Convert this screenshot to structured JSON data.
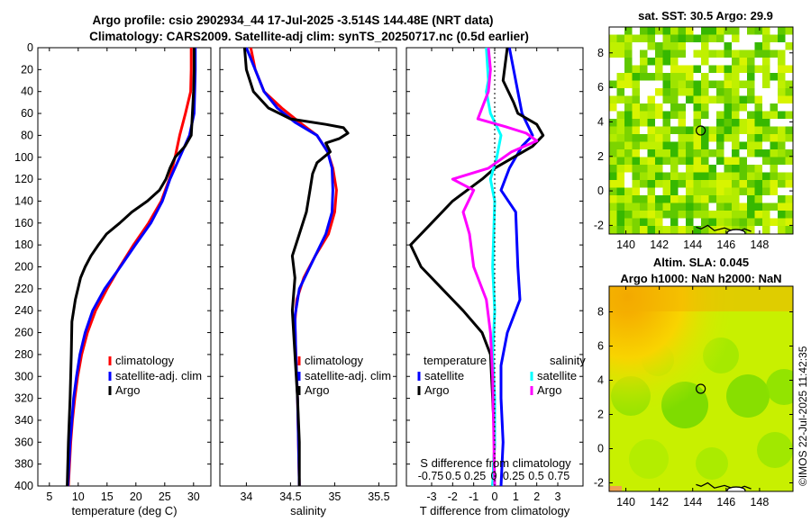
{
  "title": {
    "line1": "Argo profile: csio 2902934_44 17-Jul-2025 -3.514S 144.48E (NRT data)",
    "line2": "Climatology: CARS2009. Satellite-adj clim: synTS_20250717.nc (0.5d earlier)"
  },
  "watermark": "©IMOS 22-Jul-2025 11:42:35",
  "colors": {
    "climatology": "#ff0000",
    "satellite": "#0000ff",
    "argo": "#000000",
    "sat_diff_salinity": "#00ffff",
    "argo_diff_salinity": "#ff00ff",
    "sst_missing": "#ffffff"
  },
  "chart_data": [
    {
      "id": "temperature",
      "type": "line",
      "xlabel": "temperature (deg C)",
      "ylim": [
        0,
        400
      ],
      "yreversed": true,
      "xlim": [
        3,
        33
      ],
      "xticks": [
        5,
        10,
        15,
        20,
        25,
        30
      ],
      "yticks": [
        0,
        20,
        40,
        60,
        80,
        100,
        120,
        140,
        160,
        180,
        200,
        220,
        240,
        260,
        280,
        300,
        320,
        340,
        360,
        380,
        400
      ],
      "legend": [
        "climatology",
        "satellite-adj. clim",
        "Argo"
      ],
      "series": [
        {
          "name": "climatology",
          "color": "#ff0000",
          "points": [
            [
              29.6,
              0
            ],
            [
              29.6,
              20
            ],
            [
              29.5,
              40
            ],
            [
              28.6,
              60
            ],
            [
              27.6,
              80
            ],
            [
              26.8,
              100
            ],
            [
              25.8,
              120
            ],
            [
              24.4,
              140
            ],
            [
              22.2,
              160
            ],
            [
              19.6,
              180
            ],
            [
              17.2,
              200
            ],
            [
              15.0,
              220
            ],
            [
              13.0,
              240
            ],
            [
              11.6,
              260
            ],
            [
              10.6,
              280
            ],
            [
              9.9,
              300
            ],
            [
              9.4,
              320
            ],
            [
              9.0,
              340
            ],
            [
              8.7,
              360
            ],
            [
              8.5,
              380
            ],
            [
              8.3,
              400
            ]
          ]
        },
        {
          "name": "satellite-adj. clim",
          "color": "#0000ff",
          "points": [
            [
              30.3,
              0
            ],
            [
              30.3,
              20
            ],
            [
              30.2,
              40
            ],
            [
              30.1,
              60
            ],
            [
              29.3,
              80
            ],
            [
              27.6,
              100
            ],
            [
              25.9,
              120
            ],
            [
              24.6,
              140
            ],
            [
              22.6,
              160
            ],
            [
              19.9,
              180
            ],
            [
              17.3,
              200
            ],
            [
              14.6,
              220
            ],
            [
              12.5,
              240
            ],
            [
              11.2,
              260
            ],
            [
              10.3,
              280
            ],
            [
              9.7,
              300
            ],
            [
              9.2,
              320
            ],
            [
              8.9,
              340
            ],
            [
              8.6,
              360
            ],
            [
              8.4,
              380
            ],
            [
              8.2,
              400
            ]
          ]
        },
        {
          "name": "Argo",
          "color": "#000000",
          "points": [
            [
              30.1,
              0
            ],
            [
              30.1,
              20
            ],
            [
              30.0,
              40
            ],
            [
              29.8,
              60
            ],
            [
              29.7,
              70
            ],
            [
              29.6,
              80
            ],
            [
              28.5,
              90
            ],
            [
              26.8,
              100
            ],
            [
              25.9,
              110
            ],
            [
              25.2,
              120
            ],
            [
              24.1,
              130
            ],
            [
              22.0,
              140
            ],
            [
              19.3,
              150
            ],
            [
              17.2,
              160
            ],
            [
              14.9,
              170
            ],
            [
              13.5,
              180
            ],
            [
              12.2,
              190
            ],
            [
              11.2,
              200
            ],
            [
              10.4,
              210
            ],
            [
              9.5,
              230
            ],
            [
              8.9,
              250
            ],
            [
              8.8,
              280
            ],
            [
              8.6,
              320
            ],
            [
              8.3,
              360
            ],
            [
              8.1,
              400
            ]
          ]
        }
      ]
    },
    {
      "id": "salinity",
      "type": "line",
      "xlabel": "salinity",
      "ylim": [
        0,
        400
      ],
      "yreversed": true,
      "xlim": [
        33.7,
        35.7
      ],
      "xticks": [
        34,
        34.5,
        35,
        35.5
      ],
      "legend": [
        "climatology",
        "satellite-adj. clim",
        "Argo"
      ],
      "series": [
        {
          "name": "climatology",
          "color": "#ff0000",
          "points": [
            [
              34.05,
              0
            ],
            [
              34.1,
              20
            ],
            [
              34.2,
              40
            ],
            [
              34.4,
              55
            ],
            [
              34.6,
              68
            ],
            [
              34.8,
              80
            ],
            [
              34.92,
              95
            ],
            [
              34.98,
              110
            ],
            [
              35.02,
              130
            ],
            [
              35.0,
              150
            ],
            [
              34.93,
              170
            ],
            [
              34.78,
              190
            ],
            [
              34.65,
              210
            ],
            [
              34.57,
              230
            ],
            [
              34.55,
              250
            ],
            [
              34.56,
              280
            ],
            [
              34.58,
              320
            ],
            [
              34.59,
              360
            ],
            [
              34.6,
              400
            ]
          ]
        },
        {
          "name": "satellite-adj. clim",
          "color": "#0000ff",
          "points": [
            [
              34.0,
              0
            ],
            [
              34.1,
              20
            ],
            [
              34.2,
              40
            ],
            [
              34.35,
              55
            ],
            [
              34.55,
              68
            ],
            [
              34.8,
              80
            ],
            [
              34.92,
              95
            ],
            [
              34.97,
              110
            ],
            [
              34.98,
              130
            ],
            [
              34.97,
              150
            ],
            [
              34.9,
              170
            ],
            [
              34.75,
              195
            ],
            [
              34.6,
              220
            ],
            [
              34.55,
              245
            ],
            [
              34.56,
              280
            ],
            [
              34.58,
              320
            ],
            [
              34.59,
              360
            ],
            [
              34.6,
              400
            ]
          ]
        },
        {
          "name": "Argo",
          "color": "#000000",
          "points": [
            [
              33.98,
              0
            ],
            [
              34.0,
              20
            ],
            [
              34.08,
              40
            ],
            [
              34.25,
              55
            ],
            [
              34.5,
              65
            ],
            [
              34.9,
              70
            ],
            [
              35.1,
              73
            ],
            [
              35.15,
              78
            ],
            [
              35.05,
              83
            ],
            [
              34.9,
              87
            ],
            [
              34.95,
              95
            ],
            [
              34.8,
              105
            ],
            [
              34.75,
              115
            ],
            [
              34.72,
              130
            ],
            [
              34.68,
              150
            ],
            [
              34.6,
              170
            ],
            [
              34.52,
              190
            ],
            [
              34.55,
              210
            ],
            [
              34.52,
              240
            ],
            [
              34.55,
              280
            ],
            [
              34.58,
              320
            ],
            [
              34.6,
              360
            ],
            [
              34.6,
              400
            ]
          ]
        }
      ]
    },
    {
      "id": "differences",
      "type": "line",
      "xlabel": "T difference from climatology",
      "toplabel": "S difference from climatology",
      "ylim": [
        0,
        400
      ],
      "yreversed": true,
      "xlim": [
        -4.2,
        4.2
      ],
      "xticks": [
        -3,
        -2,
        -1,
        0,
        1,
        2,
        3
      ],
      "topticks_text": [
        "-0.75",
        "0.5",
        "0.25",
        "0",
        "0.25",
        "0.5",
        "0.75"
      ],
      "legend_titles": [
        "temperature",
        "salinity"
      ],
      "legend": [
        "satellite",
        "Argo",
        "satellite",
        "Argo"
      ],
      "series": [
        {
          "name": "temperature satellite",
          "color": "#0000ff",
          "points": [
            [
              0.7,
              0
            ],
            [
              1.0,
              30
            ],
            [
              1.3,
              60
            ],
            [
              1.8,
              80
            ],
            [
              1.3,
              90
            ],
            [
              0.7,
              110
            ],
            [
              0.3,
              130
            ],
            [
              1.0,
              150
            ],
            [
              1.1,
              200
            ],
            [
              1.2,
              230
            ],
            [
              0.6,
              260
            ],
            [
              0.3,
              290
            ],
            [
              0.3,
              320
            ],
            [
              0.4,
              360
            ],
            [
              0.3,
              400
            ]
          ]
        },
        {
          "name": "temperature Argo",
          "color": "#000000",
          "points": [
            [
              0.6,
              0
            ],
            [
              0.4,
              30
            ],
            [
              0.9,
              50
            ],
            [
              1.1,
              60
            ],
            [
              2.0,
              70
            ],
            [
              2.3,
              80
            ],
            [
              1.8,
              90
            ],
            [
              0.0,
              110
            ],
            [
              -0.6,
              120
            ],
            [
              -2.0,
              140
            ],
            [
              -3.0,
              160
            ],
            [
              -4.0,
              180
            ],
            [
              -3.5,
              200
            ],
            [
              -2.5,
              220
            ],
            [
              -1.5,
              240
            ],
            [
              -0.6,
              260
            ],
            [
              -0.2,
              280
            ],
            [
              -0.1,
              320
            ],
            [
              0.0,
              360
            ],
            [
              -0.1,
              400
            ]
          ]
        },
        {
          "name": "salinity satellite",
          "color": "#00ffff",
          "points": [
            [
              -0.4,
              0
            ],
            [
              -0.3,
              30
            ],
            [
              -0.4,
              40
            ],
            [
              -0.2,
              60
            ],
            [
              0.3,
              80
            ],
            [
              0.1,
              100
            ],
            [
              -0.2,
              120
            ],
            [
              0.0,
              140
            ],
            [
              -0.1,
              200
            ],
            [
              0.0,
              240
            ],
            [
              -0.1,
              280
            ],
            [
              0.0,
              320
            ],
            [
              0.0,
              360
            ],
            [
              -0.1,
              400
            ]
          ]
        },
        {
          "name": "salinity Argo",
          "color": "#ff00ff",
          "points": [
            [
              -0.3,
              0
            ],
            [
              -0.2,
              20
            ],
            [
              -0.3,
              40
            ],
            [
              -0.8,
              65
            ],
            [
              0.5,
              72
            ],
            [
              1.5,
              78
            ],
            [
              2.0,
              85
            ],
            [
              0.8,
              95
            ],
            [
              -0.3,
              110
            ],
            [
              -2.0,
              120
            ],
            [
              -1.0,
              130
            ],
            [
              -1.5,
              150
            ],
            [
              -1.2,
              170
            ],
            [
              -1.0,
              200
            ],
            [
              -0.4,
              230
            ],
            [
              -0.2,
              260
            ],
            [
              -0.1,
              300
            ],
            [
              0.0,
              400
            ]
          ]
        }
      ]
    },
    {
      "id": "sst-map",
      "type": "heatmap",
      "title": "sat. SST: 30.5 Argo: 29.9",
      "xlim": [
        139,
        150
      ],
      "ylim": [
        -2.5,
        9.5
      ],
      "xticks": [
        140,
        142,
        144,
        146,
        148
      ],
      "yticks": [
        -2,
        0,
        2,
        4,
        6,
        8
      ],
      "argo_position": [
        144.48,
        3.5
      ]
    },
    {
      "id": "sla-map",
      "type": "heatmap",
      "title_line1": "Altim. SLA: 0.045",
      "title_line2": "Argo h1000: NaN h2000: NaN",
      "xlim": [
        139,
        150
      ],
      "ylim": [
        -2.5,
        9.5
      ],
      "xticks": [
        140,
        142,
        144,
        146,
        148
      ],
      "yticks": [
        -2,
        0,
        2,
        4,
        6,
        8
      ],
      "argo_position": [
        144.48,
        3.5
      ]
    }
  ]
}
